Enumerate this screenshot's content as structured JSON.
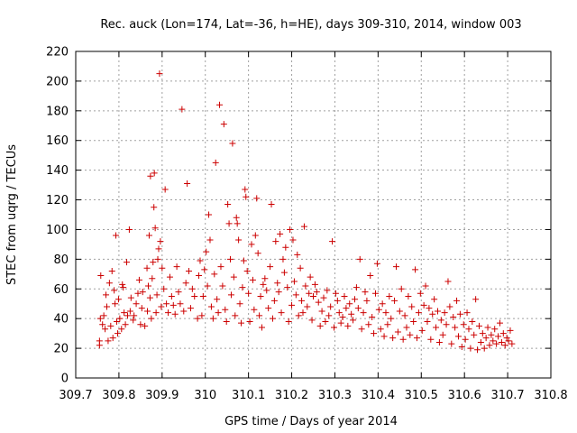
{
  "chart_data": {
    "type": "scatter",
    "title": "Rec. auck (Lon=174, Lat=-36, h=HE), days 309-310, 2014, window 003",
    "xlabel": "GPS time / Days of year 2014",
    "ylabel": "STEC from uqrg / TECUs",
    "xlim": [
      309.7,
      310.8
    ],
    "ylim": [
      0,
      220
    ],
    "x_ticks": [
      "309.7",
      "309.8",
      "309.9",
      "310",
      "310.1",
      "310.2",
      "310.3",
      "310.4",
      "310.5",
      "310.6",
      "310.7",
      "310.8"
    ],
    "y_ticks": [
      "0",
      "20",
      "40",
      "60",
      "80",
      "100",
      "120",
      "140",
      "160",
      "180",
      "200",
      "220"
    ],
    "grid": true,
    "marker": "+",
    "color": "#cc0000",
    "series": [
      {
        "values": [
          [
            309.755,
            22
          ],
          [
            309.755,
            25
          ],
          [
            309.757,
            40
          ],
          [
            309.758,
            69
          ],
          [
            309.762,
            36
          ],
          [
            309.765,
            42
          ],
          [
            309.768,
            33
          ],
          [
            309.77,
            56
          ],
          [
            309.772,
            48
          ],
          [
            309.775,
            25
          ],
          [
            309.778,
            64
          ],
          [
            309.781,
            35
          ],
          [
            309.784,
            72
          ],
          [
            309.786,
            27
          ],
          [
            309.789,
            59
          ],
          [
            309.791,
            50
          ],
          [
            309.793,
            96
          ],
          [
            309.795,
            38
          ],
          [
            309.797,
            30
          ],
          [
            309.799,
            53
          ],
          [
            309.802,
            40
          ],
          [
            309.806,
            33
          ],
          [
            309.808,
            63
          ],
          [
            309.81,
            61
          ],
          [
            309.812,
            44
          ],
          [
            309.815,
            36
          ],
          [
            309.818,
            78
          ],
          [
            309.82,
            42
          ],
          [
            309.824,
            100
          ],
          [
            309.826,
            45
          ],
          [
            309.828,
            54
          ],
          [
            309.833,
            39
          ],
          [
            309.835,
            42
          ],
          [
            309.84,
            50
          ],
          [
            309.844,
            57
          ],
          [
            309.847,
            66
          ],
          [
            309.85,
            36
          ],
          [
            309.853,
            47
          ],
          [
            309.855,
            58
          ],
          [
            309.86,
            35
          ],
          [
            309.865,
            74
          ],
          [
            309.866,
            45
          ],
          [
            309.868,
            62
          ],
          [
            309.87,
            96
          ],
          [
            309.872,
            54
          ],
          [
            309.873,
            136
          ],
          [
            309.875,
            40
          ],
          [
            309.877,
            67
          ],
          [
            309.879,
            78
          ],
          [
            309.881,
            115
          ],
          [
            309.882,
            138
          ],
          [
            309.884,
            101
          ],
          [
            309.886,
            44
          ],
          [
            309.888,
            56
          ],
          [
            309.89,
            80
          ],
          [
            309.892,
            87
          ],
          [
            309.894,
            205
          ],
          [
            309.896,
            92
          ],
          [
            309.898,
            48
          ],
          [
            309.9,
            74
          ],
          [
            309.904,
            60
          ],
          [
            309.907,
            127
          ],
          [
            309.91,
            50
          ],
          [
            309.914,
            44
          ],
          [
            309.918,
            68
          ],
          [
            309.922,
            55
          ],
          [
            309.926,
            49
          ],
          [
            309.93,
            43
          ],
          [
            309.934,
            75
          ],
          [
            309.938,
            58
          ],
          [
            309.942,
            50
          ],
          [
            309.946,
            181
          ],
          [
            309.95,
            45
          ],
          [
            309.955,
            64
          ],
          [
            309.958,
            131
          ],
          [
            309.962,
            72
          ],
          [
            309.966,
            47
          ],
          [
            309.97,
            60
          ],
          [
            309.975,
            55
          ],
          [
            309.982,
            40
          ],
          [
            309.985,
            69
          ],
          [
            309.988,
            79
          ],
          [
            309.992,
            42
          ],
          [
            309.995,
            55
          ],
          [
            309.998,
            73
          ],
          [
            310.002,
            85
          ],
          [
            310.005,
            62
          ],
          [
            310.008,
            110
          ],
          [
            310.011,
            93
          ],
          [
            310.014,
            48
          ],
          [
            310.018,
            40
          ],
          [
            310.021,
            70
          ],
          [
            310.024,
            145
          ],
          [
            310.027,
            53
          ],
          [
            310.03,
            44
          ],
          [
            310.033,
            184
          ],
          [
            310.036,
            75
          ],
          [
            310.04,
            62
          ],
          [
            310.043,
            171
          ],
          [
            310.046,
            46
          ],
          [
            310.049,
            38
          ],
          [
            310.052,
            117
          ],
          [
            310.055,
            104
          ],
          [
            310.058,
            80
          ],
          [
            310.06,
            56
          ],
          [
            310.063,
            158
          ],
          [
            310.066,
            68
          ],
          [
            310.069,
            42
          ],
          [
            310.072,
            108
          ],
          [
            310.074,
            104
          ],
          [
            310.077,
            93
          ],
          [
            310.08,
            50
          ],
          [
            310.083,
            37
          ],
          [
            310.086,
            61
          ],
          [
            310.089,
            79
          ],
          [
            310.092,
            127
          ],
          [
            310.094,
            122
          ],
          [
            310.097,
            72
          ],
          [
            310.1,
            57
          ],
          [
            310.103,
            38
          ],
          [
            310.107,
            90
          ],
          [
            310.11,
            66
          ],
          [
            310.113,
            46
          ],
          [
            310.116,
            96
          ],
          [
            310.119,
            121
          ],
          [
            310.122,
            84
          ],
          [
            310.125,
            42
          ],
          [
            310.128,
            55
          ],
          [
            310.131,
            34
          ],
          [
            310.134,
            63
          ],
          [
            310.138,
            67
          ],
          [
            310.142,
            59
          ],
          [
            310.146,
            47
          ],
          [
            310.15,
            75
          ],
          [
            310.153,
            117
          ],
          [
            310.156,
            40
          ],
          [
            310.16,
            52
          ],
          [
            310.163,
            92
          ],
          [
            310.167,
            64
          ],
          [
            310.17,
            58
          ],
          [
            310.173,
            97
          ],
          [
            310.176,
            44
          ],
          [
            310.18,
            80
          ],
          [
            310.183,
            71
          ],
          [
            310.186,
            88
          ],
          [
            310.19,
            61
          ],
          [
            310.193,
            38
          ],
          [
            310.196,
            100
          ],
          [
            310.2,
            49
          ],
          [
            310.203,
            93
          ],
          [
            310.206,
            65
          ],
          [
            310.21,
            56
          ],
          [
            310.213,
            83
          ],
          [
            310.216,
            42
          ],
          [
            310.22,
            74
          ],
          [
            310.223,
            52
          ],
          [
            310.226,
            44
          ],
          [
            310.229,
            102
          ],
          [
            310.232,
            62
          ],
          [
            310.236,
            48
          ],
          [
            310.24,
            57
          ],
          [
            310.243,
            68
          ],
          [
            310.247,
            39
          ],
          [
            310.25,
            55
          ],
          [
            310.254,
            63
          ],
          [
            310.258,
            58
          ],
          [
            310.262,
            51
          ],
          [
            310.266,
            35
          ],
          [
            310.27,
            45
          ],
          [
            310.274,
            54
          ],
          [
            310.278,
            38
          ],
          [
            310.282,
            59
          ],
          [
            310.286,
            42
          ],
          [
            310.29,
            48
          ],
          [
            310.294,
            92
          ],
          [
            310.298,
            34
          ],
          [
            310.302,
            57
          ],
          [
            310.306,
            52
          ],
          [
            310.31,
            44
          ],
          [
            310.314,
            37
          ],
          [
            310.318,
            41
          ],
          [
            310.322,
            55
          ],
          [
            310.326,
            47
          ],
          [
            310.33,
            35
          ],
          [
            310.334,
            50
          ],
          [
            310.338,
            43
          ],
          [
            310.342,
            39
          ],
          [
            310.346,
            53
          ],
          [
            310.35,
            61
          ],
          [
            310.354,
            47
          ],
          [
            310.358,
            80
          ],
          [
            310.362,
            33
          ],
          [
            310.366,
            44
          ],
          [
            310.37,
            58
          ],
          [
            310.374,
            52
          ],
          [
            310.378,
            36
          ],
          [
            310.382,
            69
          ],
          [
            310.386,
            41
          ],
          [
            310.39,
            30
          ],
          [
            310.394,
            57
          ],
          [
            310.398,
            77
          ],
          [
            310.402,
            46
          ],
          [
            310.406,
            33
          ],
          [
            310.41,
            50
          ],
          [
            310.414,
            28
          ],
          [
            310.418,
            44
          ],
          [
            310.422,
            36
          ],
          [
            310.426,
            55
          ],
          [
            310.43,
            40
          ],
          [
            310.434,
            27
          ],
          [
            310.438,
            52
          ],
          [
            310.442,
            75
          ],
          [
            310.446,
            31
          ],
          [
            310.45,
            45
          ],
          [
            310.454,
            60
          ],
          [
            310.458,
            26
          ],
          [
            310.462,
            42
          ],
          [
            310.466,
            34
          ],
          [
            310.47,
            55
          ],
          [
            310.474,
            29
          ],
          [
            310.478,
            48
          ],
          [
            310.482,
            38
          ],
          [
            310.486,
            73
          ],
          [
            310.49,
            27
          ],
          [
            310.494,
            44
          ],
          [
            310.498,
            57
          ],
          [
            310.502,
            32
          ],
          [
            310.506,
            49
          ],
          [
            310.51,
            62
          ],
          [
            310.514,
            38
          ],
          [
            310.518,
            47
          ],
          [
            310.522,
            26
          ],
          [
            310.526,
            43
          ],
          [
            310.53,
            53
          ],
          [
            310.534,
            34
          ],
          [
            310.538,
            45
          ],
          [
            310.542,
            24
          ],
          [
            310.546,
            39
          ],
          [
            310.55,
            29
          ],
          [
            310.554,
            44
          ],
          [
            310.558,
            36
          ],
          [
            310.562,
            65
          ],
          [
            310.566,
            48
          ],
          [
            310.57,
            23
          ],
          [
            310.574,
            41
          ],
          [
            310.578,
            34
          ],
          [
            310.582,
            52
          ],
          [
            310.586,
            28
          ],
          [
            310.59,
            43
          ],
          [
            310.594,
            21
          ],
          [
            310.598,
            36
          ],
          [
            310.602,
            26
          ],
          [
            310.606,
            44
          ],
          [
            310.61,
            33
          ],
          [
            310.614,
            20
          ],
          [
            310.618,
            38
          ],
          [
            310.622,
            29
          ],
          [
            310.626,
            53
          ],
          [
            310.63,
            19
          ],
          [
            310.634,
            35
          ],
          [
            310.638,
            24
          ],
          [
            310.642,
            30
          ],
          [
            310.646,
            20
          ],
          [
            310.65,
            27
          ],
          [
            310.654,
            34
          ],
          [
            310.658,
            22
          ],
          [
            310.662,
            29
          ],
          [
            310.666,
            25
          ],
          [
            310.67,
            33
          ],
          [
            310.674,
            23
          ],
          [
            310.678,
            28
          ],
          [
            310.682,
            37
          ],
          [
            310.686,
            24
          ],
          [
            310.69,
            30
          ],
          [
            310.694,
            22
          ],
          [
            310.698,
            27
          ],
          [
            310.702,
            25
          ],
          [
            310.706,
            32
          ],
          [
            310.71,
            23
          ]
        ]
      }
    ]
  }
}
